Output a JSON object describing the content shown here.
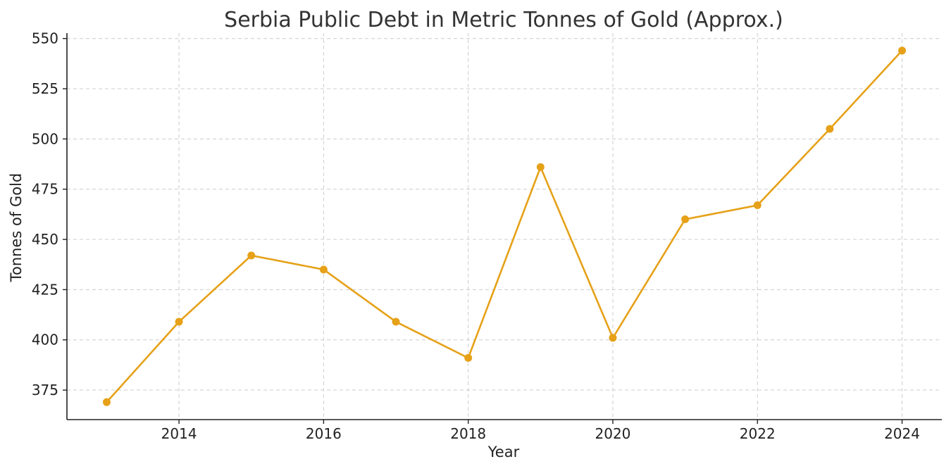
{
  "chart_data": {
    "type": "line",
    "title": "Serbia Public Debt in Metric Tonnes of Gold (Approx.)",
    "xlabel": "Year",
    "ylabel": "Tonnes of Gold",
    "x": [
      2013,
      2014,
      2015,
      2016,
      2017,
      2018,
      2019,
      2020,
      2021,
      2022,
      2023,
      2024
    ],
    "series": [
      {
        "values": [
          369,
          409,
          442,
          435,
          409,
          391,
          486,
          401,
          460,
          467,
          505,
          544
        ],
        "color": "#e6a118"
      }
    ],
    "xticks": [
      "2014",
      "2016",
      "2018",
      "2020",
      "2022",
      "2024"
    ],
    "yticks": [
      "375",
      "400",
      "425",
      "450",
      "475",
      "500",
      "525",
      "550"
    ],
    "xlim": [
      2012.45,
      2024.55
    ],
    "ylim": [
      360.3,
      552.7
    ],
    "grid": true
  }
}
